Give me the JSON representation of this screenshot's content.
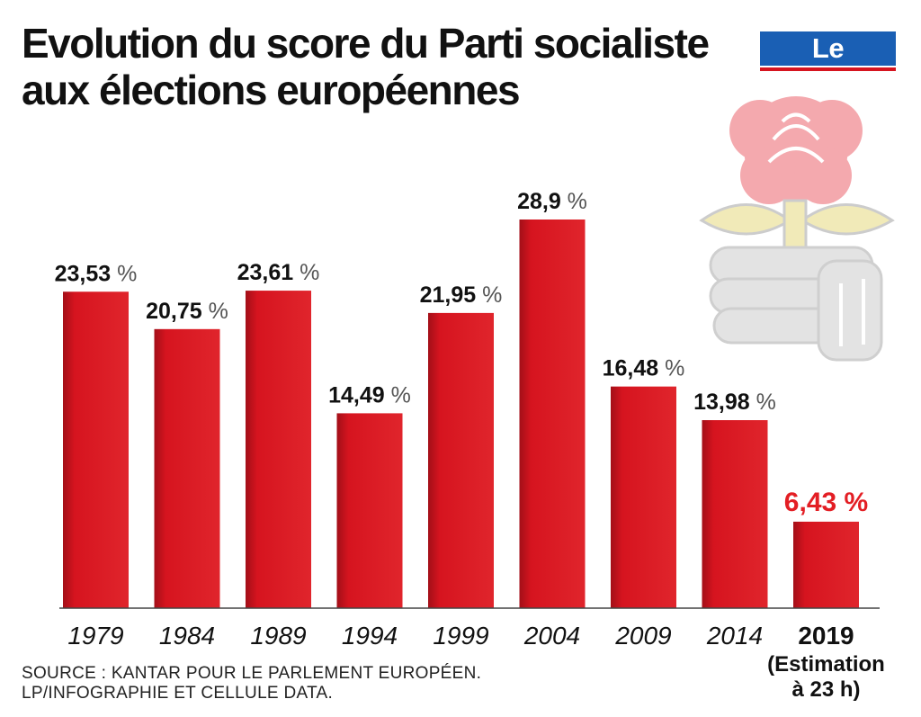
{
  "header": {
    "title_line1": "Evolution du score du Parti socialiste",
    "title_line2": "aux élections européennes",
    "brand": "Le Parisien"
  },
  "footer": {
    "source_line1": "SOURCE : KANTAR POUR LE PARLEMENT EUROPÉEN.",
    "source_line2": "LP/INFOGRAPHIE ET CELLULE DATA."
  },
  "colors": {
    "bar": "#d6141f",
    "highlight_label": "#e31e24",
    "brand_blue": "#1a5fb4",
    "rose_pink": "#f4a9ae",
    "leaf_yellow": "#f1eab8",
    "hand_gray": "#e3e3e3"
  },
  "icons": [
    "rose-in-fist-logo"
  ],
  "chart_data": {
    "type": "bar",
    "title": "Evolution du score du Parti socialiste aux élections européennes",
    "categories": [
      "1979",
      "1984",
      "1989",
      "1994",
      "1999",
      "2004",
      "2009",
      "2014",
      "2019"
    ],
    "values": [
      23.53,
      20.75,
      23.61,
      14.49,
      21.95,
      28.9,
      16.48,
      13.98,
      6.43
    ],
    "value_labels": [
      "23,53",
      "20,75",
      "23,61",
      "14,49",
      "21,95",
      "28,9",
      "16,48",
      "13,98",
      "6,43"
    ],
    "unit": "%",
    "highlight_index": 8,
    "highlight_note": [
      "(Estimation",
      "à 23 h)"
    ],
    "ylim": [
      0,
      28.9
    ],
    "grid": false,
    "legend": "none"
  }
}
